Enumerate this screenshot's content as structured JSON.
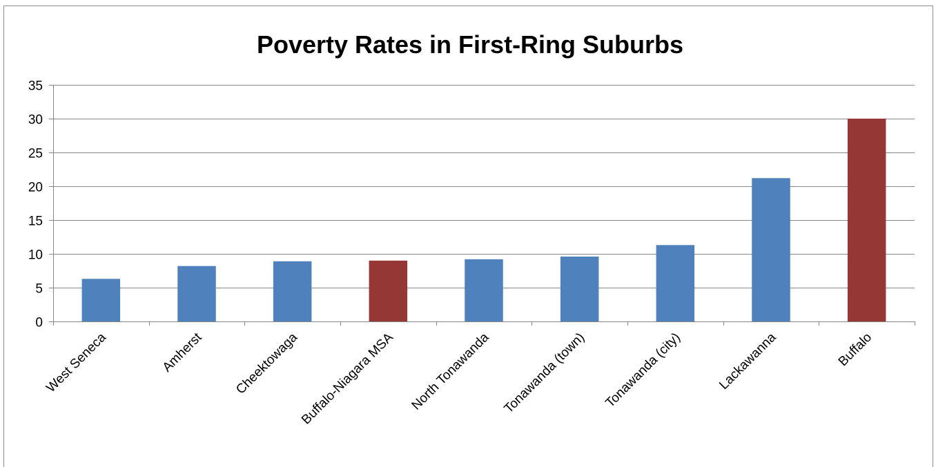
{
  "chart_data": {
    "type": "bar",
    "title": "Poverty Rates in First-Ring Suburbs",
    "xlabel": "",
    "ylabel": "",
    "categories": [
      "West Seneca",
      "Amherst",
      "Cheektowaga",
      "Buffalo-Niagara MSA",
      "North Tonawanda",
      "Tonawanda (town)",
      "Tonawanda (city)",
      "Lackawanna",
      "Buffalo"
    ],
    "values": [
      6.3,
      8.2,
      8.9,
      9.0,
      9.2,
      9.6,
      11.3,
      21.2,
      30.0
    ],
    "bar_colors": [
      "#4f81bd",
      "#4f81bd",
      "#4f81bd",
      "#953735",
      "#4f81bd",
      "#4f81bd",
      "#4f81bd",
      "#4f81bd",
      "#953735"
    ],
    "yticks": [
      0,
      5,
      10,
      15,
      20,
      25,
      30,
      35
    ],
    "ylim": [
      0,
      35
    ],
    "grid": true,
    "legend": "none"
  },
  "colors": {
    "suburb_bar": "#4f81bd",
    "highlight_bar": "#953735",
    "gridline": "#868686"
  }
}
